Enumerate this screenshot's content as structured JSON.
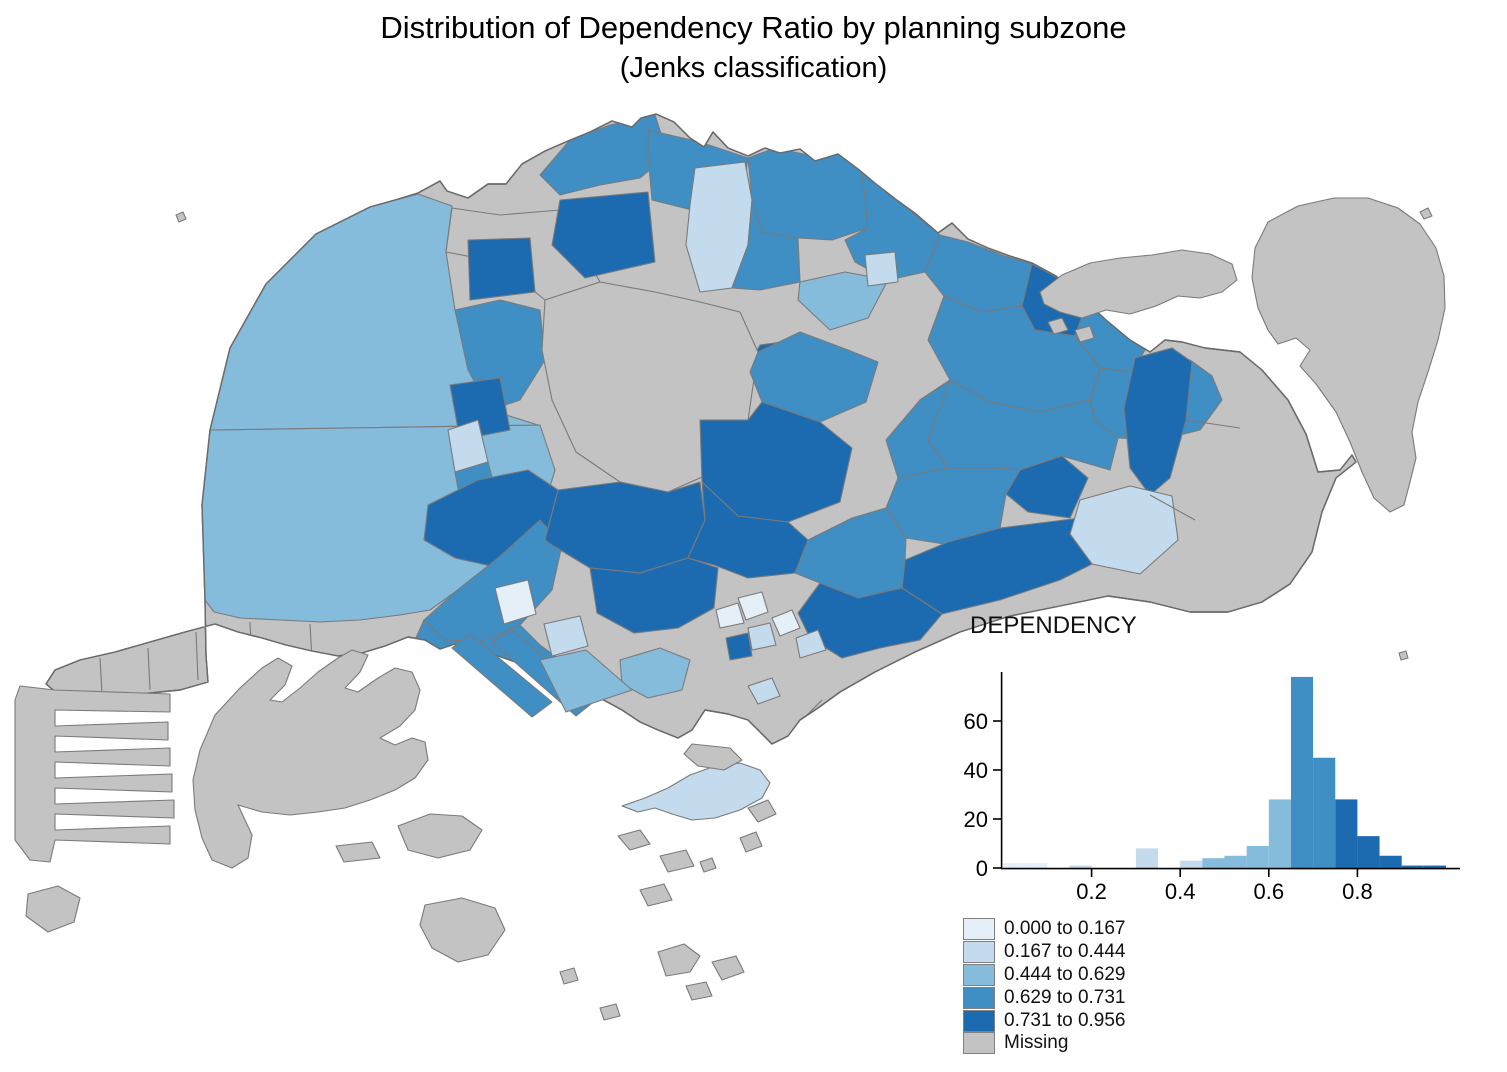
{
  "title": {
    "line1": "Distribution of Dependency Ratio by planning subzone",
    "line2": "(Jenks classification)"
  },
  "legend": {
    "classes": [
      {
        "label": "0.000 to 0.167",
        "from": 0.0,
        "to": 0.167,
        "color": "#E5EFF8"
      },
      {
        "label": "0.167 to 0.444",
        "from": 0.167,
        "to": 0.444,
        "color": "#C4DAED"
      },
      {
        "label": "0.444 to 0.629",
        "from": 0.444,
        "to": 0.629,
        "color": "#85BBDB"
      },
      {
        "label": "0.629 to 0.731",
        "from": 0.629,
        "to": 0.731,
        "color": "#3F8EC4"
      },
      {
        "label": "0.731 to 0.956",
        "from": 0.731,
        "to": 0.956,
        "color": "#1C6BB0"
      },
      {
        "label": "Missing",
        "from": null,
        "to": null,
        "color": "#C3C3C4"
      }
    ]
  },
  "map": {
    "region": "Singapore planning subzones",
    "classification": "Jenks",
    "variable": "Dependency Ratio",
    "sea_color": "#FFFFFF",
    "border_color": "#7A7A7A"
  },
  "chart_data": {
    "type": "bar",
    "title": "DEPENDENCY",
    "xlabel": "",
    "ylabel": "",
    "bin_width": 0.05,
    "bins": [
      {
        "from": 0.0,
        "to": 0.05,
        "count": 2
      },
      {
        "from": 0.05,
        "to": 0.1,
        "count": 2
      },
      {
        "from": 0.1,
        "to": 0.15,
        "count": 0
      },
      {
        "from": 0.15,
        "to": 0.2,
        "count": 1
      },
      {
        "from": 0.2,
        "to": 0.25,
        "count": 0
      },
      {
        "from": 0.25,
        "to": 0.3,
        "count": 0
      },
      {
        "from": 0.3,
        "to": 0.35,
        "count": 8
      },
      {
        "from": 0.35,
        "to": 0.4,
        "count": 0
      },
      {
        "from": 0.4,
        "to": 0.45,
        "count": 3
      },
      {
        "from": 0.45,
        "to": 0.5,
        "count": 4
      },
      {
        "from": 0.5,
        "to": 0.55,
        "count": 5
      },
      {
        "from": 0.55,
        "to": 0.6,
        "count": 9
      },
      {
        "from": 0.6,
        "to": 0.65,
        "count": 28
      },
      {
        "from": 0.65,
        "to": 0.7,
        "count": 78
      },
      {
        "from": 0.7,
        "to": 0.75,
        "count": 45
      },
      {
        "from": 0.75,
        "to": 0.8,
        "count": 28
      },
      {
        "from": 0.8,
        "to": 0.85,
        "count": 13
      },
      {
        "from": 0.85,
        "to": 0.9,
        "count": 5
      },
      {
        "from": 0.9,
        "to": 0.95,
        "count": 1
      },
      {
        "from": 0.95,
        "to": 1.0,
        "count": 1
      }
    ],
    "bar_class_indices": [
      0,
      0,
      0,
      1,
      1,
      1,
      1,
      1,
      1,
      2,
      2,
      2,
      2,
      3,
      3,
      4,
      4,
      4,
      4,
      4
    ],
    "x_ticks": [
      0.2,
      0.4,
      0.6,
      0.8
    ],
    "y_ticks": [
      0,
      20,
      40,
      60
    ],
    "xlim": [
      0,
      1.0
    ],
    "ylim": [
      0,
      80
    ],
    "grid": false,
    "legend_position": "below-right"
  }
}
